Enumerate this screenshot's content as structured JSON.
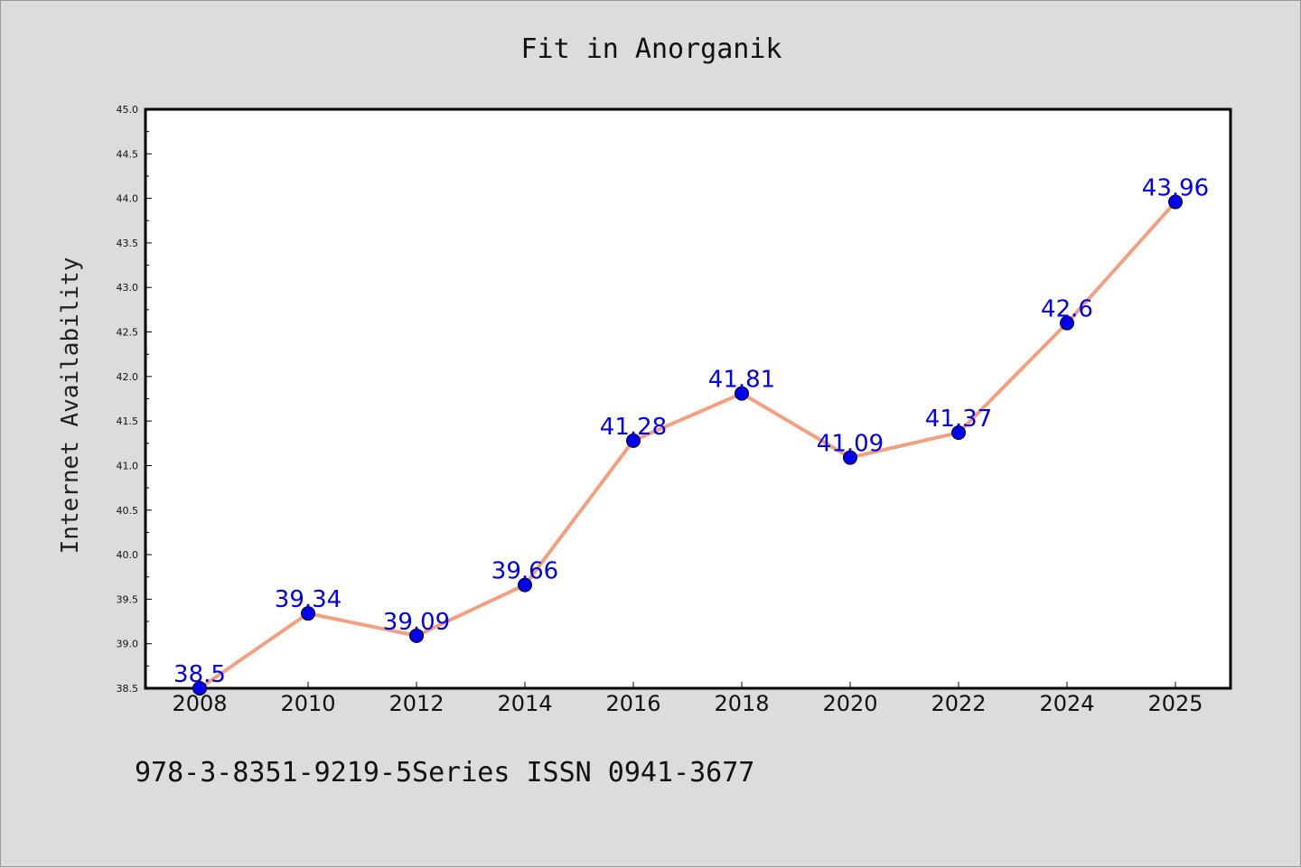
{
  "chart_data": {
    "type": "line",
    "title": "Fit in Anorganik",
    "xlabel": "",
    "ylabel": "Internet Availability",
    "categories": [
      "2008",
      "2010",
      "2012",
      "2014",
      "2016",
      "2018",
      "2020",
      "2022",
      "2024",
      "2025"
    ],
    "values": [
      38.5,
      39.34,
      39.09,
      39.66,
      41.28,
      41.81,
      41.09,
      41.37,
      42.6,
      43.96
    ],
    "data_labels": [
      "38.5",
      "39.34",
      "39.09",
      "39.66",
      "41.28",
      "41.81",
      "41.09",
      "41.37",
      "42.6",
      "43.96"
    ],
    "ylim": [
      38.5,
      45.0
    ],
    "yticks": [
      "38.5",
      "39.0",
      "39.5",
      "40.0",
      "40.5",
      "41.0",
      "41.5",
      "42.0",
      "42.5",
      "43.0",
      "43.5",
      "44.0",
      "44.5",
      "45.0"
    ],
    "grid": false,
    "legend": "none",
    "colors": {
      "line": "#f4a07f",
      "marker": "#0000ee",
      "data_label": "#0000ee",
      "background": "#dcdcdc",
      "plot_background": "#ffffff"
    }
  },
  "footer": "978-3-8351-9219-5Series ISSN 0941-3677"
}
